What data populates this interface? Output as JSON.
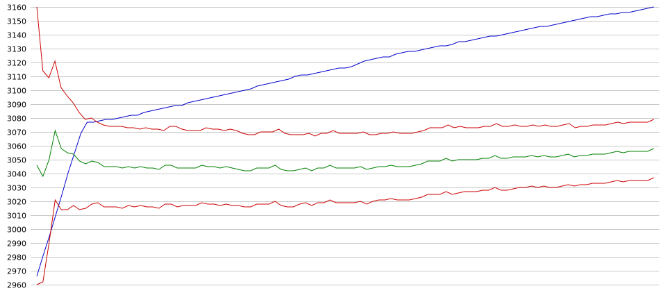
{
  "chart_data": {
    "type": "line",
    "title": "",
    "xlabel": "",
    "ylabel": "",
    "ylim": [
      2960,
      3160
    ],
    "yticks": [
      3160,
      3150,
      3140,
      3130,
      3120,
      3110,
      3100,
      3090,
      3080,
      3070,
      3060,
      3050,
      3040,
      3030,
      3020,
      3010,
      3000,
      2990,
      2980,
      2970,
      2960
    ],
    "y_tick_labels": [
      "3160",
      "3150",
      "3140",
      "3130",
      "3120",
      "3110",
      "3100",
      "3090",
      "3080",
      "3070",
      "3060",
      "3050",
      "3040",
      "3030",
      "3020",
      "3010",
      "3000",
      "2990",
      "2980",
      "2970",
      "2960"
    ],
    "x_count": 130,
    "grid": "horizontal",
    "legend": "none",
    "series": [
      {
        "color": "#0000cc",
        "values": [
          2966,
          2981,
          2995,
          3010,
          3025,
          3041,
          3055,
          3069,
          3077,
          3077,
          3078,
          3079,
          3079,
          3080,
          3081,
          3082,
          3082,
          3084,
          3085,
          3086,
          3087,
          3088,
          3089,
          3089,
          3091,
          3092,
          3093,
          3094,
          3095,
          3096,
          3097,
          3098,
          3099,
          3100,
          3101,
          3103,
          3104,
          3105,
          3106,
          3107,
          3108,
          3110,
          3111,
          3111,
          3112,
          3113,
          3114,
          3115,
          3116,
          3116,
          3117,
          3119,
          3121,
          3122,
          3123,
          3124,
          3124,
          3126,
          3127,
          3128,
          3128,
          3129,
          3130,
          3131,
          3132,
          3132,
          3133,
          3135,
          3135,
          3136,
          3137,
          3138,
          3139,
          3139,
          3140,
          3141,
          3142,
          3143,
          3144,
          3145,
          3146,
          3146,
          3147,
          3148,
          3149,
          3150,
          3151,
          3152,
          3153,
          3153,
          3154,
          3155,
          3155,
          3156,
          3156,
          3157,
          3158,
          3159,
          3160
        ]
      },
      {
        "color": "#cc0000",
        "values": [
          3160,
          3114,
          3109,
          3121,
          3102,
          3096,
          3091,
          3084,
          3079,
          3080,
          3077,
          3075,
          3074,
          3074,
          3074,
          3073,
          3073,
          3072,
          3073,
          3072,
          3072,
          3071,
          3074,
          3074,
          3072,
          3071,
          3071,
          3071,
          3073,
          3072,
          3072,
          3071,
          3072,
          3071,
          3069,
          3068,
          3068,
          3070,
          3070,
          3070,
          3072,
          3069,
          3068,
          3068,
          3068,
          3069,
          3067,
          3069,
          3069,
          3071,
          3069,
          3069,
          3069,
          3069,
          3070,
          3068,
          3068,
          3069,
          3069,
          3070,
          3069,
          3069,
          3069,
          3070,
          3071,
          3073,
          3073,
          3073,
          3075,
          3073,
          3074,
          3073,
          3073,
          3073,
          3074,
          3074,
          3076,
          3074,
          3074,
          3075,
          3074,
          3074,
          3075,
          3074,
          3075,
          3074,
          3074,
          3075,
          3076,
          3073,
          3074,
          3074,
          3075,
          3075,
          3075,
          3076,
          3077,
          3076,
          3077,
          3077,
          3077,
          3077,
          3079
        ]
      },
      {
        "color": "#008000",
        "values": [
          3046,
          3038,
          3050,
          3071,
          3058,
          3055,
          3054,
          3049,
          3047,
          3049,
          3048,
          3045,
          3045,
          3045,
          3044,
          3045,
          3044,
          3045,
          3044,
          3044,
          3043,
          3046,
          3046,
          3044,
          3044,
          3044,
          3044,
          3046,
          3045,
          3045,
          3044,
          3045,
          3044,
          3043,
          3042,
          3042,
          3044,
          3044,
          3044,
          3046,
          3043,
          3042,
          3042,
          3043,
          3044,
          3042,
          3044,
          3044,
          3046,
          3044,
          3044,
          3044,
          3044,
          3045,
          3043,
          3044,
          3045,
          3045,
          3046,
          3045,
          3045,
          3045,
          3046,
          3047,
          3049,
          3049,
          3049,
          3051,
          3049,
          3050,
          3050,
          3050,
          3050,
          3051,
          3051,
          3053,
          3051,
          3051,
          3052,
          3052,
          3052,
          3053,
          3052,
          3053,
          3052,
          3052,
          3053,
          3054,
          3052,
          3053,
          3053,
          3054,
          3054,
          3054,
          3055,
          3056,
          3055,
          3056,
          3056,
          3056,
          3056,
          3058
        ]
      },
      {
        "color": "#cc0000",
        "values": [
          2960,
          2962,
          2990,
          3021,
          3014,
          3014,
          3017,
          3014,
          3015,
          3018,
          3019,
          3016,
          3016,
          3016,
          3015,
          3017,
          3016,
          3017,
          3016,
          3016,
          3015,
          3018,
          3018,
          3016,
          3017,
          3017,
          3017,
          3019,
          3018,
          3018,
          3017,
          3018,
          3017,
          3017,
          3016,
          3016,
          3018,
          3018,
          3018,
          3020,
          3017,
          3016,
          3016,
          3018,
          3019,
          3017,
          3019,
          3019,
          3021,
          3019,
          3019,
          3019,
          3019,
          3020,
          3018,
          3020,
          3021,
          3021,
          3022,
          3021,
          3021,
          3021,
          3022,
          3023,
          3025,
          3025,
          3025,
          3027,
          3025,
          3026,
          3027,
          3027,
          3027,
          3028,
          3028,
          3030,
          3028,
          3028,
          3029,
          3030,
          3030,
          3031,
          3030,
          3031,
          3030,
          3030,
          3031,
          3032,
          3031,
          3032,
          3032,
          3033,
          3033,
          3033,
          3034,
          3035,
          3034,
          3035,
          3035,
          3035,
          3035,
          3037
        ]
      }
    ]
  }
}
